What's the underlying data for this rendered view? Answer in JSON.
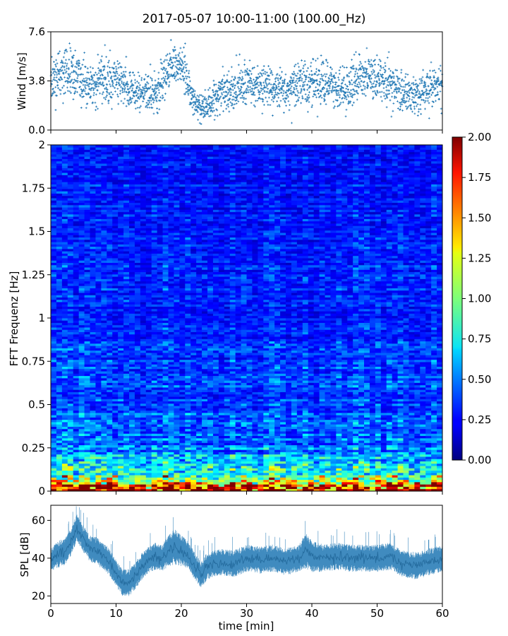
{
  "title": "2017-05-07 10:00-11:00 (100.00_Hz)",
  "chart_data": [
    {
      "type": "scatter",
      "panel": "wind",
      "ylabel": "Wind [m/s]",
      "xlim": [
        0,
        60
      ],
      "ylim": [
        0.0,
        7.6
      ],
      "yticks": [
        "0.0",
        "3.8",
        "7.6"
      ],
      "marker": "+",
      "color": "#1f77b4",
      "envelope": {
        "x": [
          0,
          2,
          4,
          6,
          8,
          10,
          12,
          14,
          16,
          17,
          18,
          19,
          20,
          21,
          22,
          23,
          24,
          26,
          28,
          30,
          32,
          34,
          36,
          38,
          40,
          42,
          44,
          46,
          48,
          50,
          52,
          54,
          55,
          56,
          58,
          60
        ],
        "mean": [
          3.9,
          4.5,
          4.2,
          3.2,
          3.8,
          4.2,
          3.0,
          3.0,
          2.8,
          3.8,
          4.5,
          5.0,
          4.8,
          3.6,
          2.4,
          1.8,
          2.0,
          2.8,
          3.0,
          3.8,
          3.3,
          3.4,
          3.0,
          3.6,
          3.8,
          3.7,
          3.4,
          3.2,
          4.4,
          4.0,
          3.6,
          3.0,
          2.8,
          2.7,
          3.1,
          3.2
        ],
        "spread": [
          1.1,
          1.4,
          1.2,
          1.0,
          1.3,
          1.2,
          0.9,
          0.9,
          1.0,
          1.1,
          1.2,
          1.1,
          1.0,
          1.0,
          0.8,
          0.7,
          0.9,
          1.0,
          1.0,
          1.2,
          1.0,
          1.0,
          0.9,
          1.1,
          1.2,
          1.1,
          1.0,
          1.0,
          1.2,
          1.2,
          1.1,
          1.0,
          1.0,
          1.0,
          1.1,
          1.2
        ]
      }
    },
    {
      "type": "heatmap",
      "panel": "spectrogram",
      "ylabel": "FFT Frequenz [Hz]",
      "xlim": [
        0,
        60
      ],
      "ylim": [
        0,
        2
      ],
      "yticks": [
        "0",
        "0.25",
        "0.5",
        "0.75",
        "1",
        "1.25",
        "1.5",
        "1.75",
        "2"
      ],
      "colorbar": {
        "min": 0.0,
        "max": 2.0,
        "ticks": [
          "0.00",
          "0.25",
          "0.50",
          "0.75",
          "1.00",
          "1.25",
          "1.50",
          "1.75",
          "2.00"
        ],
        "colormap": "jet"
      },
      "profile": {
        "freq_hz": [
          0.0,
          0.02,
          0.05,
          0.08,
          0.12,
          0.17,
          0.25,
          0.35,
          0.5,
          0.75,
          1.0,
          1.5,
          2.0
        ],
        "typical_psd": [
          1.9,
          1.8,
          1.3,
          0.95,
          0.8,
          0.65,
          0.5,
          0.45,
          0.4,
          0.36,
          0.34,
          0.3,
          0.28
        ]
      }
    },
    {
      "type": "area",
      "panel": "spl",
      "ylabel": "SPL [dB]",
      "xlabel": "time [min]",
      "xlim": [
        0,
        60
      ],
      "ylim": [
        16,
        68
      ],
      "yticks": [
        "20",
        "40",
        "60"
      ],
      "xticks": [
        "0",
        "10",
        "20",
        "30",
        "40",
        "50",
        "60"
      ],
      "color": "#1f77b4",
      "envelope": {
        "x": [
          0,
          1,
          2,
          3,
          4,
          5,
          6,
          7,
          8,
          9,
          10,
          11,
          12,
          13,
          14,
          15,
          16,
          17,
          18,
          19,
          20,
          21,
          22,
          23,
          24,
          26,
          28,
          30,
          32,
          34,
          36,
          38,
          39,
          40,
          42,
          44,
          46,
          48,
          50,
          52,
          54,
          56,
          58,
          60
        ],
        "mean": [
          39,
          42,
          43,
          48,
          56,
          50,
          45,
          44,
          41,
          38,
          32,
          27,
          27,
          31,
          36,
          39,
          41,
          40,
          44,
          46,
          44,
          42,
          36,
          31,
          36,
          38,
          37,
          40,
          39,
          40,
          38,
          40,
          44,
          41,
          40,
          41,
          40,
          40,
          40,
          41,
          37,
          36,
          38,
          40
        ],
        "spread": [
          5,
          6,
          6,
          6,
          6,
          6,
          6,
          6,
          6,
          6,
          6,
          6,
          6,
          6,
          6,
          6,
          6,
          6,
          7,
          8,
          7,
          6,
          6,
          6,
          6,
          6,
          6,
          6,
          6,
          6,
          6,
          6,
          8,
          7,
          6,
          6,
          6,
          6,
          6,
          6,
          6,
          6,
          6,
          6
        ]
      }
    }
  ]
}
